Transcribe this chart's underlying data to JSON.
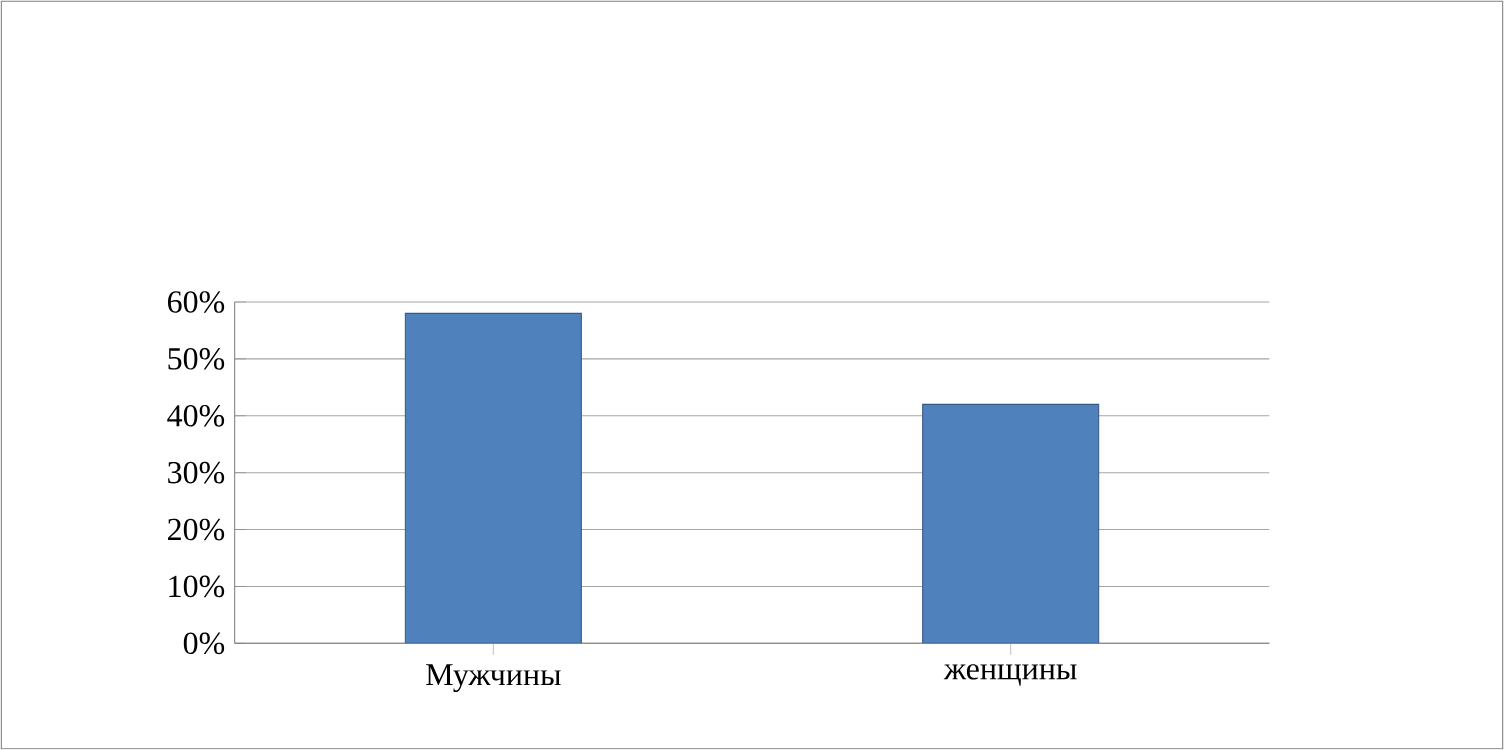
{
  "chart_data": {
    "type": "bar",
    "categories": [
      "Мужчины",
      "женщины"
    ],
    "series": [
      {
        "color": "#4f81bd",
        "values": [
          58,
          42
        ]
      }
    ],
    "ylim": [
      0,
      60
    ],
    "yticks": [
      {
        "value": 0,
        "label": "0%"
      },
      {
        "value": 10,
        "label": "10%"
      },
      {
        "value": 20,
        "label": "20%"
      },
      {
        "value": 30,
        "label": "30%"
      },
      {
        "value": 40,
        "label": "40%"
      },
      {
        "value": 50,
        "label": "50%"
      },
      {
        "value": 60,
        "label": "60%"
      }
    ],
    "grid": "y"
  }
}
